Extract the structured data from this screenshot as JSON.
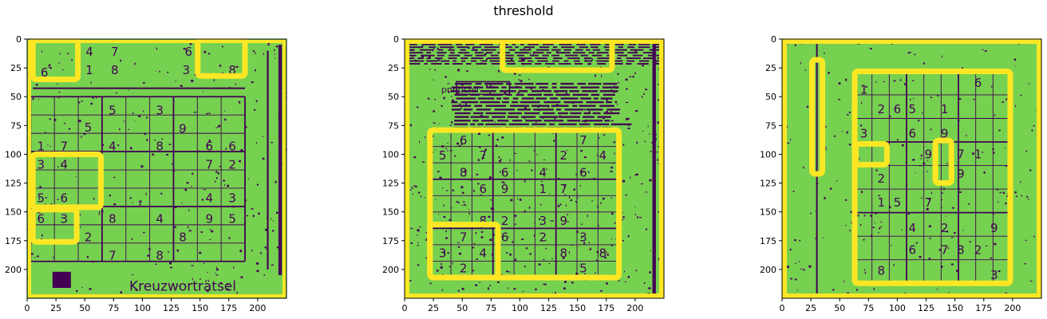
{
  "figure": {
    "title": "threshold"
  },
  "colors": {
    "background": "#76d150",
    "ink": "#440154",
    "highlight": "#fde725",
    "axis": "#000000"
  },
  "chart_data": [
    {
      "type": "heatmap",
      "title": "",
      "image_size": [
        225,
        225
      ],
      "xlim": [
        0,
        225
      ],
      "ylim": [
        225,
        0
      ],
      "xticks": [
        0,
        25,
        50,
        75,
        100,
        125,
        150,
        175,
        200
      ],
      "yticks": [
        0,
        25,
        50,
        75,
        100,
        125,
        150,
        175,
        200
      ],
      "grid": {
        "x0": 3,
        "y0": 50,
        "x1": 189,
        "y1": 193
      },
      "digits": [
        {
          "t": "4",
          "x": 54,
          "y": 11
        },
        {
          "t": "7",
          "x": 76,
          "y": 11
        },
        {
          "t": "6",
          "x": 140,
          "y": 11
        },
        {
          "t": "1",
          "x": 54,
          "y": 27
        },
        {
          "t": "8",
          "x": 76,
          "y": 27
        },
        {
          "t": "3",
          "x": 138,
          "y": 27
        },
        {
          "t": "8",
          "x": 178,
          "y": 27
        },
        {
          "t": "6",
          "x": 15,
          "y": 29
        },
        {
          "t": "5",
          "x": 74,
          "y": 62
        },
        {
          "t": "3",
          "x": 115,
          "y": 62
        },
        {
          "t": "5",
          "x": 53,
          "y": 77
        },
        {
          "t": "9",
          "x": 135,
          "y": 78
        },
        {
          "t": "1",
          "x": 12,
          "y": 93
        },
        {
          "t": "7",
          "x": 32,
          "y": 93
        },
        {
          "t": "4",
          "x": 74,
          "y": 93
        },
        {
          "t": "8",
          "x": 115,
          "y": 93
        },
        {
          "t": "6",
          "x": 158,
          "y": 93
        },
        {
          "t": "6",
          "x": 178,
          "y": 93
        },
        {
          "t": "3",
          "x": 12,
          "y": 109
        },
        {
          "t": "4",
          "x": 32,
          "y": 109
        },
        {
          "t": "7",
          "x": 158,
          "y": 109
        },
        {
          "t": "2",
          "x": 178,
          "y": 109
        },
        {
          "t": "5",
          "x": 12,
          "y": 138
        },
        {
          "t": "6",
          "x": 32,
          "y": 138
        },
        {
          "t": "4",
          "x": 158,
          "y": 138
        },
        {
          "t": "3",
          "x": 178,
          "y": 138
        },
        {
          "t": "6",
          "x": 12,
          "y": 156
        },
        {
          "t": "3",
          "x": 32,
          "y": 156
        },
        {
          "t": "8",
          "x": 74,
          "y": 156
        },
        {
          "t": "4",
          "x": 115,
          "y": 156
        },
        {
          "t": "9",
          "x": 158,
          "y": 156
        },
        {
          "t": "5",
          "x": 178,
          "y": 156
        },
        {
          "t": "2",
          "x": 53,
          "y": 172
        },
        {
          "t": "8",
          "x": 135,
          "y": 172
        },
        {
          "t": "7",
          "x": 74,
          "y": 188
        },
        {
          "t": "8",
          "x": 115,
          "y": 188
        }
      ],
      "texts": [
        {
          "t": "Kreuzworträtsel",
          "x": 135,
          "y": 215
        }
      ],
      "highlights": [
        {
          "x0": 5,
          "y0": 0,
          "x1": 44,
          "y1": 35
        },
        {
          "x0": 148,
          "y0": 0,
          "x1": 189,
          "y1": 32
        },
        {
          "x0": 5,
          "y0": 100,
          "x1": 64,
          "y1": 146
        },
        {
          "x0": 5,
          "y0": 148,
          "x1": 43,
          "y1": 176
        }
      ]
    },
    {
      "type": "heatmap",
      "title": "",
      "image_size": [
        225,
        225
      ],
      "xlim": [
        0,
        225
      ],
      "ylim": [
        225,
        0
      ],
      "xticks": [
        0,
        25,
        50,
        75,
        100,
        125,
        150,
        175,
        200
      ],
      "yticks": [
        0,
        25,
        50,
        75,
        100,
        125,
        150,
        175,
        200
      ],
      "grid": {
        "x0": 22,
        "y0": 79,
        "x1": 186,
        "y1": 207
      },
      "digits": [
        {
          "t": "6",
          "x": 51,
          "y": 88
        },
        {
          "t": "7",
          "x": 155,
          "y": 88
        },
        {
          "t": "5",
          "x": 33,
          "y": 101
        },
        {
          "t": "7",
          "x": 68,
          "y": 101
        },
        {
          "t": "2",
          "x": 138,
          "y": 101
        },
        {
          "t": "4",
          "x": 172,
          "y": 101
        },
        {
          "t": "8",
          "x": 51,
          "y": 116
        },
        {
          "t": "6",
          "x": 87,
          "y": 116
        },
        {
          "t": "4",
          "x": 120,
          "y": 116
        },
        {
          "t": "6",
          "x": 155,
          "y": 116
        },
        {
          "t": "6",
          "x": 68,
          "y": 130
        },
        {
          "t": "9",
          "x": 87,
          "y": 130
        },
        {
          "t": "1",
          "x": 120,
          "y": 130
        },
        {
          "t": "7",
          "x": 138,
          "y": 130
        },
        {
          "t": "8",
          "x": 68,
          "y": 158
        },
        {
          "t": "2",
          "x": 87,
          "y": 158
        },
        {
          "t": "3",
          "x": 120,
          "y": 158
        },
        {
          "t": "9",
          "x": 138,
          "y": 158
        },
        {
          "t": "7",
          "x": 51,
          "y": 172
        },
        {
          "t": "6",
          "x": 87,
          "y": 172
        },
        {
          "t": "2",
          "x": 120,
          "y": 172
        },
        {
          "t": "3",
          "x": 155,
          "y": 172
        },
        {
          "t": "3",
          "x": 33,
          "y": 186
        },
        {
          "t": "4",
          "x": 68,
          "y": 186
        },
        {
          "t": "8",
          "x": 138,
          "y": 186
        },
        {
          "t": "8",
          "x": 172,
          "y": 186
        },
        {
          "t": "2",
          "x": 51,
          "y": 199
        },
        {
          "t": "5",
          "x": 155,
          "y": 199
        }
      ],
      "texts": [
        {
          "t": "pnnuchll",
          "x": 48,
          "y": 44
        }
      ],
      "highlights": [
        {
          "x0": 85,
          "y0": 0,
          "x1": 180,
          "y1": 27
        },
        {
          "x0": 22,
          "y0": 79,
          "x1": 186,
          "y1": 207
        },
        {
          "x0": 22,
          "y0": 161,
          "x1": 81,
          "y1": 207
        }
      ]
    },
    {
      "type": "heatmap",
      "title": "",
      "image_size": [
        225,
        225
      ],
      "xlim": [
        0,
        225
      ],
      "ylim": [
        225,
        0
      ],
      "xticks": [
        0,
        25,
        50,
        75,
        100,
        125,
        150,
        175,
        200
      ],
      "yticks": [
        0,
        25,
        50,
        75,
        100,
        125,
        150,
        175,
        200
      ],
      "grid": {
        "x0": 63,
        "y0": 28,
        "x1": 198,
        "y1": 212
      },
      "digits": [
        {
          "t": "6",
          "x": 170,
          "y": 38
        },
        {
          "t": "1",
          "x": 71,
          "y": 44
        },
        {
          "t": "2",
          "x": 86,
          "y": 61
        },
        {
          "t": "6",
          "x": 100,
          "y": 61
        },
        {
          "t": "5",
          "x": 113,
          "y": 61
        },
        {
          "t": "1",
          "x": 141,
          "y": 61
        },
        {
          "t": "3",
          "x": 71,
          "y": 82
        },
        {
          "t": "6",
          "x": 113,
          "y": 82
        },
        {
          "t": "9",
          "x": 141,
          "y": 82
        },
        {
          "t": "9",
          "x": 127,
          "y": 100
        },
        {
          "t": "7",
          "x": 155,
          "y": 100
        },
        {
          "t": "1",
          "x": 170,
          "y": 100
        },
        {
          "t": "9",
          "x": 155,
          "y": 117
        },
        {
          "t": "2",
          "x": 86,
          "y": 121
        },
        {
          "t": "1",
          "x": 86,
          "y": 142
        },
        {
          "t": "5",
          "x": 100,
          "y": 142
        },
        {
          "t": "7",
          "x": 127,
          "y": 142
        },
        {
          "t": "4",
          "x": 113,
          "y": 164
        },
        {
          "t": "2",
          "x": 141,
          "y": 164
        },
        {
          "t": "9",
          "x": 184,
          "y": 164
        },
        {
          "t": "6",
          "x": 113,
          "y": 183
        },
        {
          "t": "7",
          "x": 141,
          "y": 183
        },
        {
          "t": "8",
          "x": 155,
          "y": 183
        },
        {
          "t": "2",
          "x": 170,
          "y": 183
        },
        {
          "t": "8",
          "x": 86,
          "y": 201
        },
        {
          "t": "3",
          "x": 184,
          "y": 205
        }
      ],
      "texts": [],
      "highlights": [
        {
          "x0": 26,
          "y0": 18,
          "x1": 35,
          "y1": 117
        },
        {
          "x0": 63,
          "y0": 28,
          "x1": 198,
          "y1": 212
        },
        {
          "x0": 64,
          "y0": 91,
          "x1": 91,
          "y1": 109
        },
        {
          "x0": 133,
          "y0": 88,
          "x1": 147,
          "y1": 125
        }
      ]
    }
  ]
}
